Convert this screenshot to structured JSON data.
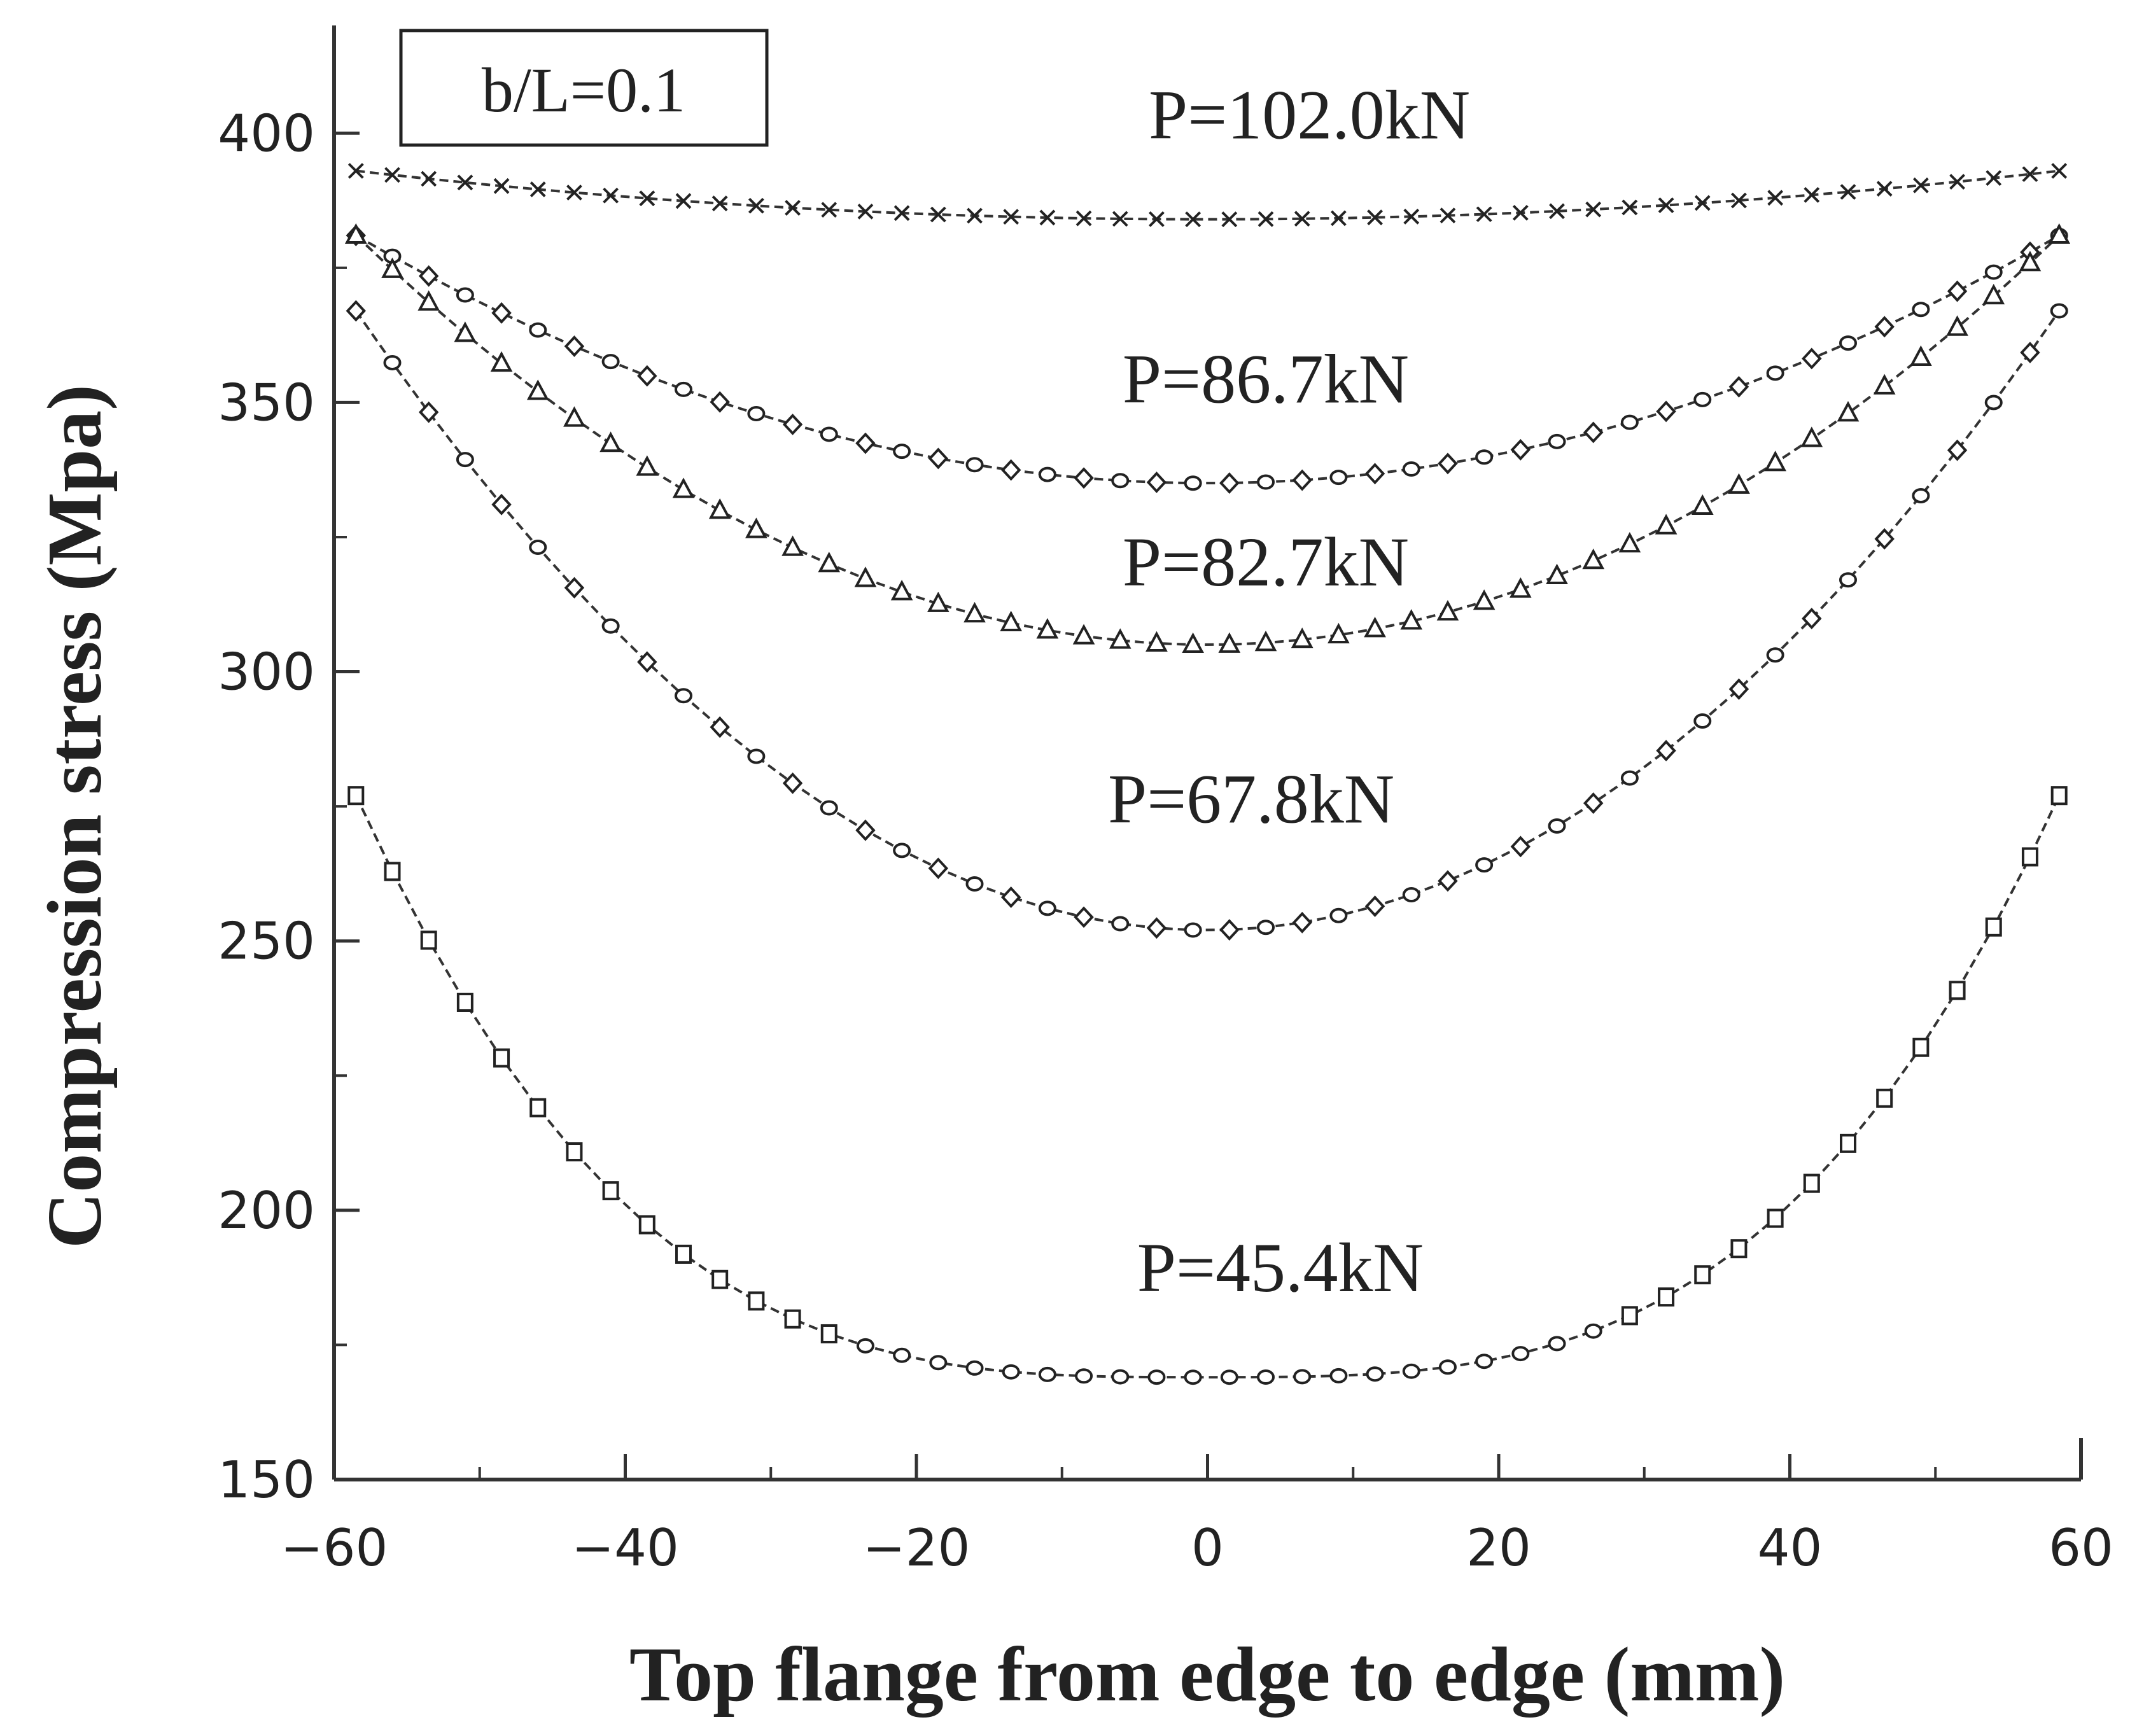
{
  "chart_data": {
    "type": "line",
    "xlabel": "Top flange from edge to edge (mm)",
    "ylabel": "Compression stress (Mpa)",
    "xlim": [
      -60,
      60
    ],
    "ylim": [
      150,
      420
    ],
    "xticks": [
      -60,
      -40,
      -20,
      0,
      20,
      40,
      60
    ],
    "xtick_labels": [
      "−60",
      "−40",
      "−20",
      "0",
      "20",
      "40",
      "60"
    ],
    "yticks": [
      150,
      200,
      250,
      300,
      350,
      400
    ],
    "ytick_labels": [
      "150",
      "200",
      "250",
      "300",
      "350",
      "400"
    ],
    "annotation": "b/L=0.1",
    "grid": false,
    "series": [
      {
        "label": "P=102.0kN",
        "marker": "x",
        "dash": true,
        "edge": 393,
        "min": 384,
        "label_pos": [
          7,
          399
        ]
      },
      {
        "label": "P=86.7kN",
        "marker": "diamond-circle",
        "dash": true,
        "edge": 381,
        "min": 335,
        "label_pos": [
          4,
          350
        ]
      },
      {
        "label": "P=82.7kN",
        "marker": "triangle",
        "dash": true,
        "edge": 381,
        "min": 305,
        "label_pos": [
          4,
          316
        ]
      },
      {
        "label": "P=67.8kN",
        "marker": "diamond-circle",
        "dash": true,
        "edge": 367,
        "min": 252,
        "label_pos": [
          3,
          272
        ]
      },
      {
        "label": "P=45.4kN",
        "marker": "square-circle",
        "dash": true,
        "edge": 277,
        "min": 169,
        "label_pos": [
          5,
          185
        ]
      }
    ],
    "x_positions": [
      -58.5,
      -56,
      -53.5,
      -51,
      -48.5,
      -46,
      -43.5,
      -41,
      -38.5,
      -36,
      -33.5,
      -31,
      -28.5,
      -26,
      -23.5,
      -21,
      -18.5,
      -16,
      -13.5,
      -11,
      -8.5,
      -6,
      -3.5,
      -1,
      1.5,
      4,
      6.5,
      9,
      11.5,
      14,
      16.5,
      19,
      21.5,
      24,
      26.5,
      29,
      31.5,
      34,
      36.5,
      39,
      41.5,
      44,
      46.5,
      49,
      51.5,
      54,
      56.5,
      58.5
    ]
  }
}
